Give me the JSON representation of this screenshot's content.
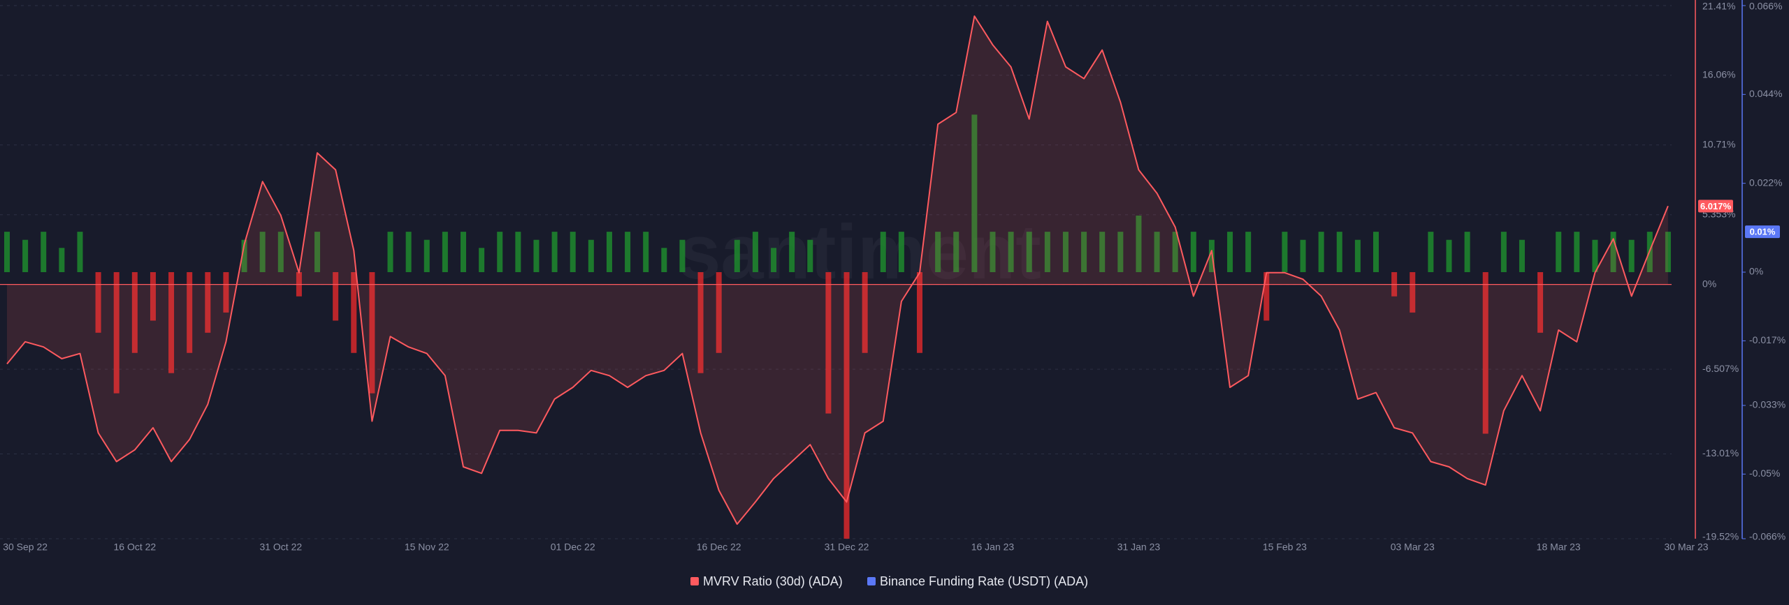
{
  "chart_data": {
    "type": "combo",
    "watermark": "santiment",
    "grid": true,
    "categories": [
      null,
      "30 Sep 22",
      null,
      null,
      null,
      null,
      null,
      "16 Oct 22",
      null,
      null,
      null,
      null,
      null,
      null,
      null,
      "31 Oct 22",
      null,
      null,
      null,
      null,
      null,
      null,
      null,
      "15 Nov 22",
      null,
      null,
      null,
      null,
      null,
      null,
      null,
      "01 Dec 22",
      null,
      null,
      null,
      null,
      null,
      null,
      null,
      "16 Dec 22",
      null,
      null,
      null,
      null,
      null,
      null,
      "31 Dec 22",
      null,
      null,
      null,
      null,
      null,
      null,
      null,
      "16 Jan 23",
      null,
      null,
      null,
      null,
      null,
      null,
      null,
      "31 Jan 23",
      null,
      null,
      null,
      null,
      null,
      null,
      null,
      "15 Feb 23",
      null,
      null,
      null,
      null,
      null,
      null,
      "03 Mar 23",
      null,
      null,
      null,
      null,
      null,
      null,
      null,
      "18 Mar 23",
      null,
      null,
      null,
      null,
      null,
      null,
      "30 Mar 23"
    ],
    "series": [
      {
        "name": "MVRV Ratio (30d) (ADA)",
        "type": "line",
        "axis": "y",
        "color": "#ff5a5f",
        "values": [
          -6.1,
          -4.4,
          -4.8,
          -5.7,
          -5.3,
          -11.4,
          -13.6,
          -12.7,
          -11.0,
          -13.6,
          -11.9,
          -9.2,
          -4.4,
          3.1,
          7.9,
          5.3,
          0.9,
          10.1,
          8.8,
          2.6,
          -10.5,
          -4.0,
          -4.8,
          -5.3,
          -7.0,
          -14.0,
          -14.5,
          -11.2,
          -11.2,
          -11.4,
          -8.8,
          -7.9,
          -6.6,
          -7.0,
          -7.9,
          -7.0,
          -6.6,
          -5.3,
          -11.4,
          -15.8,
          -18.4,
          -16.7,
          -14.9,
          -13.6,
          -12.3,
          -14.9,
          -16.7,
          -11.4,
          -10.5,
          -1.3,
          0.9,
          12.3,
          13.2,
          20.6,
          18.4,
          16.7,
          12.7,
          20.2,
          16.7,
          15.8,
          18.0,
          14.0,
          8.8,
          7.0,
          4.4,
          -0.9,
          2.6,
          -7.9,
          -7.0,
          0.9,
          0.9,
          0.4,
          -0.9,
          -3.5,
          -8.8,
          -8.3,
          -11.0,
          -11.4,
          -13.6,
          -14.0,
          -14.9,
          -15.4,
          -9.7,
          -7.0,
          -9.7,
          -3.5,
          -4.4,
          0.9,
          3.5,
          -0.9,
          2.6,
          6.017,
          null
        ],
        "value_labels": [
          null,
          null,
          null,
          null,
          null,
          null,
          null,
          null,
          null,
          null,
          null,
          null,
          null,
          null,
          null,
          null,
          null,
          null,
          null,
          null,
          null,
          null,
          null,
          null,
          null,
          null,
          null,
          null,
          null,
          null,
          null,
          null,
          null,
          null,
          null,
          null,
          null,
          null,
          null,
          null,
          null,
          null,
          null,
          null,
          null,
          null,
          null,
          null,
          null,
          null,
          null,
          null,
          null,
          null,
          null,
          null,
          null,
          null,
          null,
          null,
          null,
          null,
          null,
          null,
          null,
          null,
          null,
          null,
          null,
          null,
          null,
          null,
          null,
          null,
          null,
          null,
          null,
          null,
          null,
          null,
          null,
          null,
          null,
          null,
          null,
          null,
          null,
          null,
          null,
          null,
          null,
          "6.017%",
          null
        ]
      },
      {
        "name": "Binance Funding Rate (USDT) (ADA)",
        "type": "bar",
        "axis": "y2",
        "color": "#5b78f6",
        "positive_color": "#1f8a2e",
        "negative_color": "#d8282b",
        "values": [
          0.01,
          0.008,
          0.01,
          0.006,
          0.01,
          -0.015,
          -0.03,
          -0.02,
          -0.012,
          -0.025,
          -0.02,
          -0.015,
          -0.01,
          0.008,
          0.01,
          0.01,
          -0.006,
          0.01,
          -0.012,
          -0.02,
          -0.03,
          0.01,
          0.01,
          0.008,
          0.01,
          0.01,
          0.006,
          0.01,
          0.01,
          0.008,
          0.01,
          0.01,
          0.008,
          0.01,
          0.01,
          0.01,
          0.006,
          0.008,
          -0.025,
          -0.02,
          0.008,
          0.01,
          0.006,
          0.01,
          0.008,
          -0.035,
          -0.066,
          -0.02,
          0.01,
          0.01,
          -0.02,
          0.01,
          0.01,
          0.039,
          0.01,
          0.01,
          0.01,
          0.01,
          0.01,
          0.01,
          0.01,
          0.01,
          0.014,
          0.01,
          0.01,
          0.01,
          0.008,
          0.01,
          0.01,
          -0.012,
          0.01,
          0.008,
          0.01,
          0.01,
          0.008,
          0.01,
          -0.006,
          -0.01,
          0.01,
          0.008,
          0.01,
          -0.04,
          0.01,
          0.008,
          -0.015,
          0.01,
          0.01,
          0.008,
          0.01,
          0.008,
          0.01,
          0.01,
          null
        ],
        "value_labels": [
          null,
          null,
          null,
          null,
          null,
          null,
          null,
          null,
          null,
          null,
          null,
          null,
          null,
          null,
          null,
          null,
          null,
          null,
          null,
          null,
          null,
          null,
          null,
          null,
          null,
          null,
          null,
          null,
          null,
          null,
          null,
          null,
          null,
          null,
          null,
          null,
          null,
          null,
          null,
          null,
          null,
          null,
          null,
          null,
          null,
          null,
          null,
          null,
          null,
          null,
          null,
          null,
          null,
          null,
          null,
          null,
          null,
          null,
          null,
          null,
          null,
          null,
          null,
          null,
          null,
          null,
          null,
          null,
          null,
          null,
          null,
          null,
          null,
          null,
          null,
          null,
          null,
          null,
          null,
          null,
          null,
          null,
          null,
          null,
          null,
          null,
          null,
          null,
          null,
          null,
          null,
          "0.01%",
          null
        ]
      }
    ],
    "ylim": [
      -19.52,
      21.41
    ],
    "yticks": [
      {
        "value": -19.52,
        "label": "-19.52%"
      },
      {
        "value": -13.01,
        "label": "-13.01%"
      },
      {
        "value": -6.507,
        "label": "-6.507%"
      },
      {
        "value": 0,
        "label": "0%"
      },
      {
        "value": 5.353,
        "label": "5.353%"
      },
      {
        "value": 10.71,
        "label": "10.71%"
      },
      {
        "value": 16.06,
        "label": "16.06%"
      },
      {
        "value": 21.41,
        "label": "21.41%"
      }
    ],
    "y2lim": [
      -0.066,
      0.066
    ],
    "y2ticks": [
      {
        "value": -0.066,
        "label": "-0.066%"
      },
      {
        "value": -0.05,
        "label": "-0.05%"
      },
      {
        "value": -0.033,
        "label": "-0.033%"
      },
      {
        "value": -0.017,
        "label": "-0.017%"
      },
      {
        "value": 0,
        "label": "0%"
      },
      {
        "value": 0.022,
        "label": "0.022%"
      },
      {
        "value": 0.044,
        "label": "0.044%"
      },
      {
        "value": 0.066,
        "label": "0.066%"
      }
    ]
  }
}
